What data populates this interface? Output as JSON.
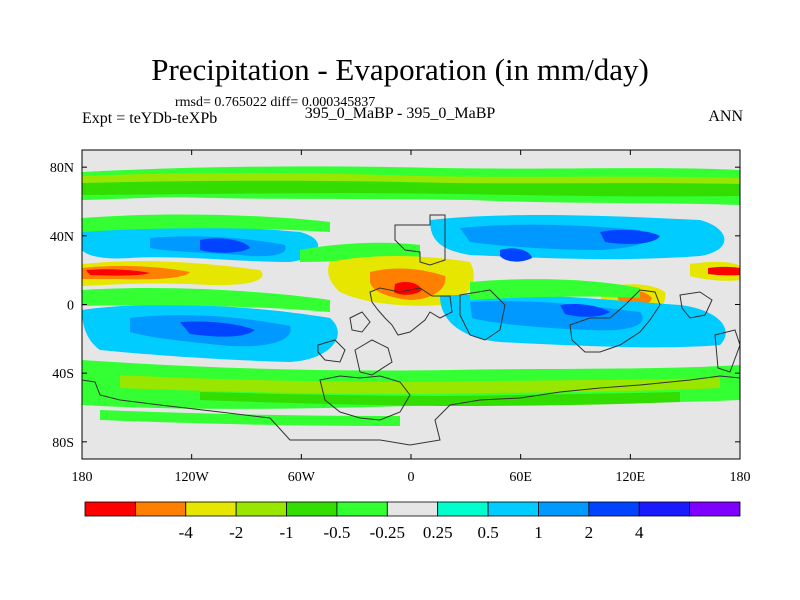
{
  "chart_data": {
    "type": "heatmap",
    "title": "Precipitation - Evaporation (in mm/day)",
    "subtitle": "rmsd= 0.765022  diff= 0.000345837",
    "experiment": "Expt = teYDb-teXPb",
    "center_label": "395_0_MaBP - 395_0_MaBP",
    "season": "ANN",
    "x_ticks": [
      {
        "value": -180,
        "label": "180"
      },
      {
        "value": -120,
        "label": "120W"
      },
      {
        "value": -60,
        "label": "60W"
      },
      {
        "value": 0,
        "label": "0"
      },
      {
        "value": 60,
        "label": "60E"
      },
      {
        "value": 120,
        "label": "120E"
      },
      {
        "value": 180,
        "label": "180"
      }
    ],
    "y_ticks": [
      {
        "value": 80,
        "label": "80N"
      },
      {
        "value": 40,
        "label": "40N"
      },
      {
        "value": 0,
        "label": "0"
      },
      {
        "value": -40,
        "label": "40S"
      },
      {
        "value": -80,
        "label": "80S"
      }
    ],
    "xlim": [
      -180,
      180
    ],
    "ylim": [
      -90,
      90
    ],
    "colorbar": {
      "colors": [
        "#ff0000",
        "#ff8000",
        "#e6e600",
        "#99e600",
        "#33dd00",
        "#33ff33",
        "#e6e6e6",
        "#00ffcc",
        "#00ccff",
        "#0099ff",
        "#0044ff",
        "#1a1aff",
        "#8000ff"
      ],
      "labels": [
        "-4",
        "-2",
        "-1",
        "-0.5",
        "-0.25",
        "0.25",
        "0.5",
        "1",
        "2",
        "4"
      ]
    },
    "field_legend": {
      "background": "#e6e6e6",
      "coastline": "#333333"
    }
  }
}
